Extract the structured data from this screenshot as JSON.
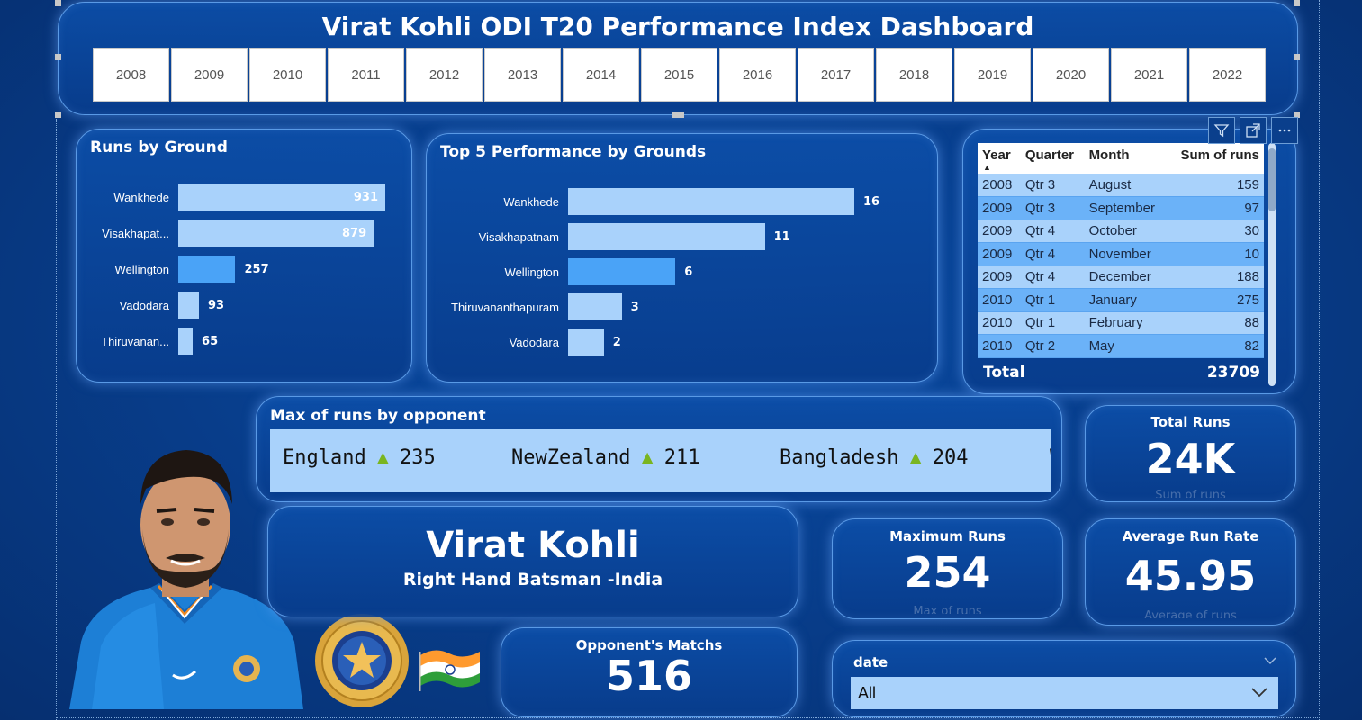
{
  "header": {
    "title": "Virat Kohli ODI T20 Performance Index Dashboard",
    "years": [
      "2008",
      "2009",
      "2010",
      "2011",
      "2012",
      "2013",
      "2014",
      "2015",
      "2016",
      "2017",
      "2018",
      "2019",
      "2020",
      "2021",
      "2022"
    ]
  },
  "chart_data": [
    {
      "type": "bar",
      "orientation": "horizontal",
      "title": "Runs by Ground",
      "categories": [
        "Wankhede",
        "Visakhapat...",
        "Wellington",
        "Vadodara",
        "Thiruvanan..."
      ],
      "values": [
        931,
        879,
        257,
        93,
        65
      ],
      "highlight_index": 2
    },
    {
      "type": "bar",
      "orientation": "horizontal",
      "title": "Top 5 Performance by Grounds",
      "categories": [
        "Wankhede",
        "Visakhapatnam",
        "Wellington",
        "Thiruvananthapuram",
        "Vadodara"
      ],
      "values": [
        16,
        11,
        6,
        3,
        2
      ],
      "highlight_index": 2
    },
    {
      "type": "table",
      "columns": [
        "Year",
        "Quarter",
        "Month",
        "Sum of runs"
      ],
      "rows": [
        [
          "2008",
          "Qtr 3",
          "August",
          "159"
        ],
        [
          "2009",
          "Qtr 3",
          "September",
          "97"
        ],
        [
          "2009",
          "Qtr 4",
          "October",
          "30"
        ],
        [
          "2009",
          "Qtr 4",
          "November",
          "10"
        ],
        [
          "2009",
          "Qtr 4",
          "December",
          "188"
        ],
        [
          "2010",
          "Qtr 1",
          "January",
          "275"
        ],
        [
          "2010",
          "Qtr 1",
          "February",
          "88"
        ],
        [
          "2010",
          "Qtr 2",
          "May",
          "82"
        ]
      ],
      "total_label": "Total",
      "total_value": "23709"
    }
  ],
  "ticker": {
    "title": "Max of runs by opponent",
    "items": [
      {
        "team": "England",
        "value": "235"
      },
      {
        "team": "NewZealand",
        "value": "211"
      },
      {
        "team": "Bangladesh",
        "value": "204"
      },
      {
        "team": "W",
        "value": ""
      }
    ],
    "up_symbol": "▲"
  },
  "kpis": {
    "total_runs": {
      "label": "Total Runs",
      "value": "24K",
      "sub": "Sum of runs"
    },
    "max_runs": {
      "label": "Maximum Runs",
      "value": "254",
      "sub": "Max of runs"
    },
    "avg_run_rate": {
      "label": "Average Run Rate",
      "value": "45.95",
      "sub": "Average of runs"
    },
    "opponent_matches": {
      "label": "Opponent's Matchs",
      "value": "516"
    }
  },
  "player": {
    "name": "Virat Kohli",
    "role": "Right Hand Batsman -India"
  },
  "date_slicer": {
    "label": "date",
    "selected": "All"
  },
  "colors": {
    "bar": "#a9d2fb",
    "bar_highlight": "#4aa3f7",
    "background": "#083f8e",
    "panel_border": "#5a9ae6"
  }
}
